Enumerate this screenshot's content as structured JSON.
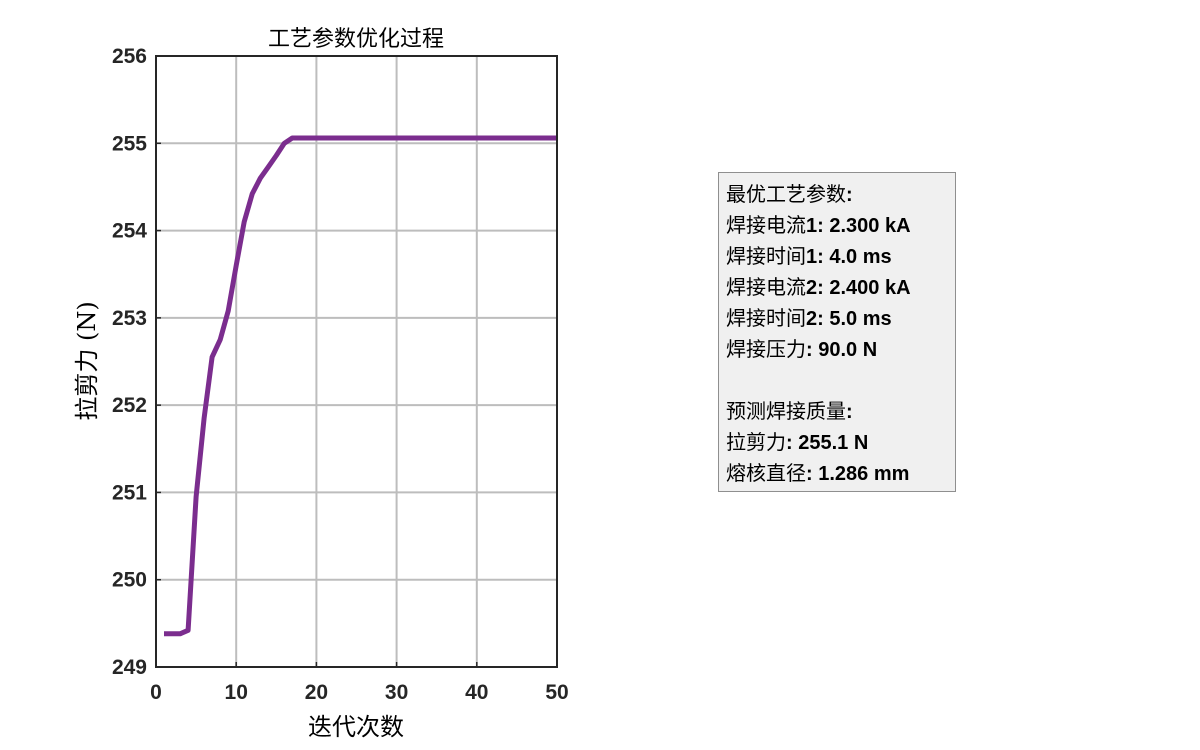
{
  "chart_data": {
    "type": "line",
    "title": "工艺参数优化过程",
    "xlabel": "迭代次数",
    "ylabel": "拉剪力 (N)",
    "xlim": [
      0,
      50
    ],
    "ylim": [
      249,
      256
    ],
    "xticks": [
      0,
      10,
      20,
      30,
      40,
      50
    ],
    "yticks": [
      249,
      250,
      251,
      252,
      253,
      254,
      255,
      256
    ],
    "grid": true,
    "series": [
      {
        "color": "#7b2d8e",
        "x": [
          1,
          2,
          3,
          4,
          5,
          6,
          7,
          8,
          9,
          10,
          11,
          12,
          13,
          14,
          15,
          16,
          17,
          18,
          20,
          25,
          30,
          35,
          40,
          45,
          50
        ],
        "y": [
          249.38,
          249.38,
          249.38,
          249.42,
          250.95,
          251.85,
          252.55,
          252.75,
          253.08,
          253.6,
          254.1,
          254.42,
          254.6,
          254.73,
          254.86,
          255.0,
          255.06,
          255.06,
          255.06,
          255.06,
          255.06,
          255.06,
          255.06,
          255.06,
          255.06
        ]
      }
    ]
  },
  "info_box": {
    "lines": [
      {
        "label": "最优工艺参数",
        "value": ":"
      },
      {
        "label": "焊接电流",
        "value": "1: 2.300 kA"
      },
      {
        "label": "焊接时间",
        "value": "1: 4.0 ms"
      },
      {
        "label": "焊接电流",
        "value": "2: 2.400 kA"
      },
      {
        "label": "焊接时间",
        "value": "2: 5.0 ms"
      },
      {
        "label": "焊接压力",
        "value": ": 90.0 N"
      },
      {
        "label": "",
        "value": ""
      },
      {
        "label": "预测焊接质量",
        "value": ":"
      },
      {
        "label": "拉剪力",
        "value": ": 255.1 N"
      },
      {
        "label": "熔核直径",
        "value": ": 1.286 mm"
      }
    ]
  }
}
